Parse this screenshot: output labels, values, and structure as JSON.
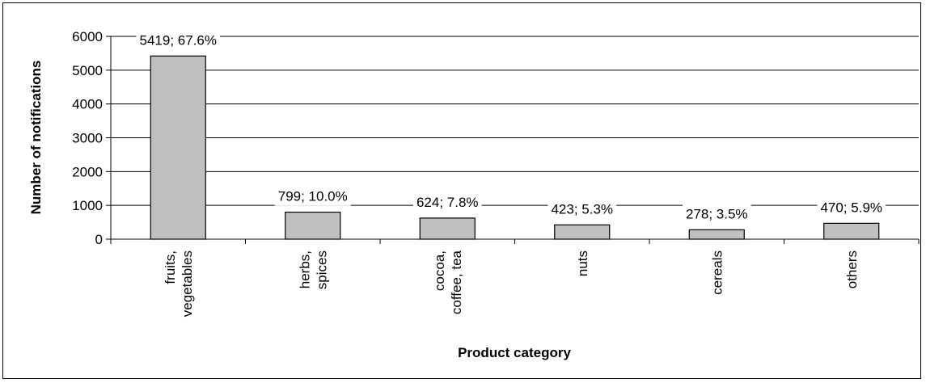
{
  "chart_data": {
    "type": "bar",
    "xlabel": "Product category",
    "ylabel": "Number of notifications",
    "ylim": [
      0,
      6000
    ],
    "yticks": [
      0,
      1000,
      2000,
      3000,
      4000,
      5000,
      6000
    ],
    "grid": true,
    "legend": "none",
    "bar_color": "#c0c0c0",
    "categories": [
      {
        "lines": [
          "fruits,",
          "vegetables"
        ]
      },
      {
        "lines": [
          "herbs,",
          "spices"
        ]
      },
      {
        "lines": [
          "cocoa,",
          "coffee, tea"
        ]
      },
      {
        "lines": [
          "nuts"
        ]
      },
      {
        "lines": [
          "cereals"
        ]
      },
      {
        "lines": [
          "others"
        ]
      }
    ],
    "values": [
      5419,
      799,
      624,
      423,
      278,
      470
    ],
    "data_labels": [
      "5419; 67.6%",
      "799; 10.0%",
      "624; 7.8%",
      "423; 5.3%",
      "278; 3.5%",
      "470; 5.9%"
    ]
  }
}
